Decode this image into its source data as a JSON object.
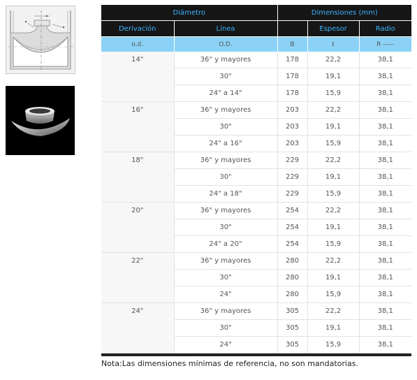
{
  "header": {
    "diametro": "Diámetro",
    "dimensiones": "Dimensiones (mm)",
    "derivacion": "Derivación",
    "linea": "Línea",
    "espesor": "Espesor",
    "radio": "Radio"
  },
  "subheader": {
    "od_lower": "o.d.",
    "od_upper": "O.D.",
    "b": "B",
    "t": "t",
    "r": "R -----"
  },
  "groups": [
    {
      "derivacion": "14\"",
      "rows": [
        {
          "linea": "36\" y mayores",
          "b": "178",
          "t": "22,2",
          "r": "38,1"
        },
        {
          "linea": "30\"",
          "b": "178",
          "t": "19,1",
          "r": "38,1"
        },
        {
          "linea": "24\" a 14\"",
          "b": "178",
          "t": "15,9",
          "r": "38,1"
        }
      ]
    },
    {
      "derivacion": "16\"",
      "rows": [
        {
          "linea": "36\" y mayores",
          "b": "203",
          "t": "22,2",
          "r": "38,1"
        },
        {
          "linea": "30\"",
          "b": "203",
          "t": "19,1",
          "r": "38,1"
        },
        {
          "linea": "24\" a 16\"",
          "b": "203",
          "t": "15,9",
          "r": "38,1"
        }
      ]
    },
    {
      "derivacion": "18\"",
      "rows": [
        {
          "linea": "36\" y mayores",
          "b": "229",
          "t": "22,2",
          "r": "38,1"
        },
        {
          "linea": "30\"",
          "b": "229",
          "t": "19,1",
          "r": "38,1"
        },
        {
          "linea": "24\" a 18\"",
          "b": "229",
          "t": "15,9",
          "r": "38,1"
        }
      ]
    },
    {
      "derivacion": "20\"",
      "rows": [
        {
          "linea": "36\" y mayores",
          "b": "254",
          "t": "22,2",
          "r": "38,1"
        },
        {
          "linea": "30\"",
          "b": "254",
          "t": "19,1",
          "r": "38,1"
        },
        {
          "linea": "24\" a 20\"",
          "b": "254",
          "t": "15,9",
          "r": "38,1"
        }
      ]
    },
    {
      "derivacion": "22\"",
      "rows": [
        {
          "linea": "36\" y mayores",
          "b": "280",
          "t": "22,2",
          "r": "38,1"
        },
        {
          "linea": "30\"",
          "b": "280",
          "t": "19,1",
          "r": "38,1"
        },
        {
          "linea": "24\"",
          "b": "280",
          "t": "15,9",
          "r": "38,1"
        }
      ]
    },
    {
      "derivacion": "24\"",
      "rows": [
        {
          "linea": "36\" y mayores",
          "b": "305",
          "t": "22,2",
          "r": "38,1"
        },
        {
          "linea": "30\"",
          "b": "305",
          "t": "19,1",
          "r": "38,1"
        },
        {
          "linea": "24\"",
          "b": "305",
          "t": "15,9",
          "r": "38,1"
        }
      ]
    }
  ],
  "note": "Nota:Las dimensiones mínimas de referencia, no son mandatorias."
}
